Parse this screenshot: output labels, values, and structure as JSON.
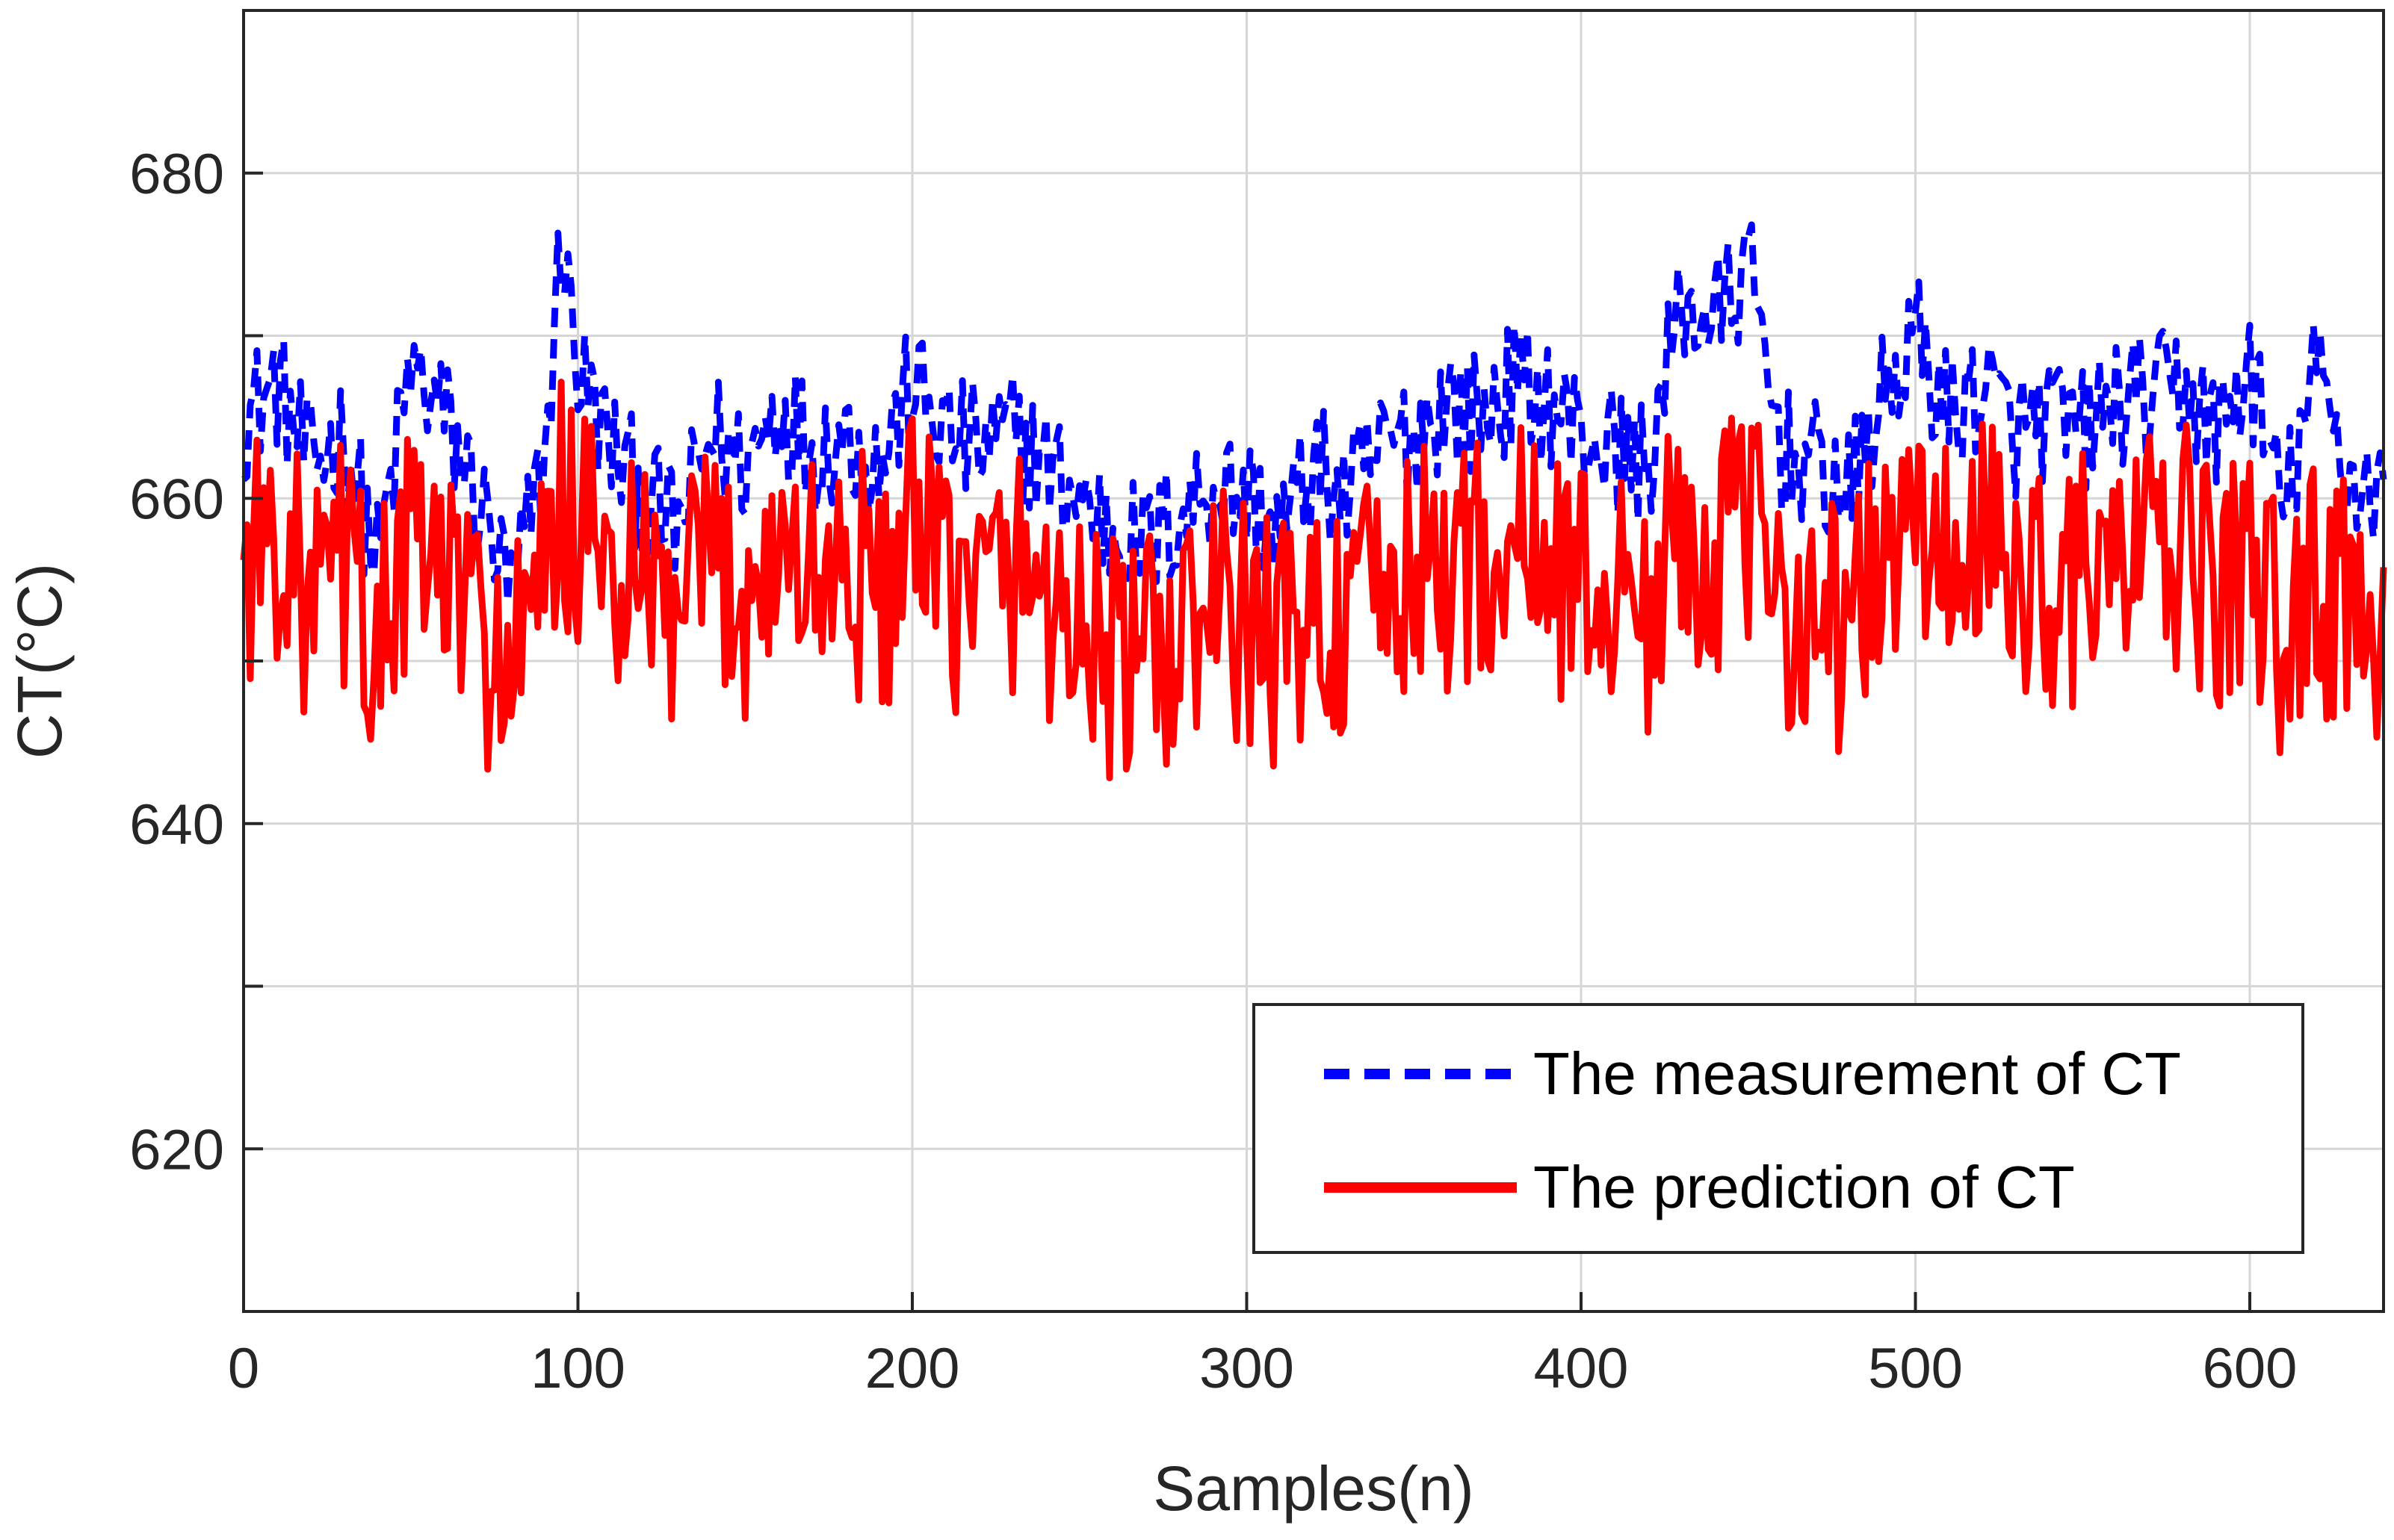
{
  "chart_data": {
    "type": "line",
    "title": "",
    "xlabel": "Samples(n)",
    "ylabel": "CT(°C)",
    "xlim": [
      0,
      640
    ],
    "ylim": [
      610,
      690
    ],
    "xticks": [
      0,
      100,
      200,
      300,
      400,
      500,
      600
    ],
    "yticks": [
      620,
      640,
      660,
      680
    ],
    "grid": true,
    "legend_position": "bottom-right",
    "x": [
      0,
      10,
      20,
      30,
      40,
      50,
      60,
      70,
      80,
      90,
      95,
      100,
      110,
      120,
      130,
      140,
      150,
      160,
      170,
      180,
      190,
      200,
      210,
      220,
      230,
      240,
      250,
      260,
      270,
      280,
      290,
      300,
      310,
      320,
      330,
      340,
      350,
      360,
      370,
      380,
      390,
      400,
      410,
      420,
      430,
      440,
      450,
      460,
      470,
      480,
      490,
      500,
      510,
      520,
      530,
      540,
      550,
      560,
      570,
      580,
      590,
      600,
      610,
      620,
      630,
      640
    ],
    "series": [
      {
        "name": "The measurement of CT",
        "color": "#0000ff",
        "style": "dashed",
        "values": [
          665,
          667,
          662,
          664,
          656,
          668,
          665,
          660,
          654,
          662,
          676,
          668,
          663,
          660,
          658,
          664,
          662,
          666,
          663,
          664,
          662,
          667,
          664,
          663,
          664,
          662,
          660,
          658,
          657,
          659,
          661,
          660,
          658,
          662,
          660,
          663,
          664,
          666,
          665,
          667,
          666,
          664,
          663,
          662,
          672,
          671,
          674,
          663,
          662,
          660,
          666,
          670,
          665,
          667,
          664,
          665,
          664,
          666,
          666,
          667,
          664,
          668,
          659,
          668,
          661,
          661
        ]
      },
      {
        "name": "The prediction of CT",
        "color": "#ff0000",
        "style": "solid",
        "values": [
          656,
          658,
          653,
          656,
          651,
          657,
          655,
          652,
          649,
          654,
          660,
          658,
          655,
          654,
          652,
          656,
          654,
          657,
          655,
          656,
          654,
          657,
          655,
          654,
          656,
          654,
          652,
          650,
          650,
          651,
          653,
          652,
          651,
          653,
          652,
          654,
          655,
          656,
          656,
          657,
          656,
          655,
          654,
          653,
          658,
          657,
          658,
          654,
          653,
          652,
          656,
          658,
          656,
          657,
          655,
          655,
          655,
          656,
          656,
          657,
          654,
          656,
          651,
          655,
          653,
          653
        ]
      }
    ],
    "noise_band": {
      "measurement_half_width": 4,
      "prediction_half_width": 8
    }
  }
}
